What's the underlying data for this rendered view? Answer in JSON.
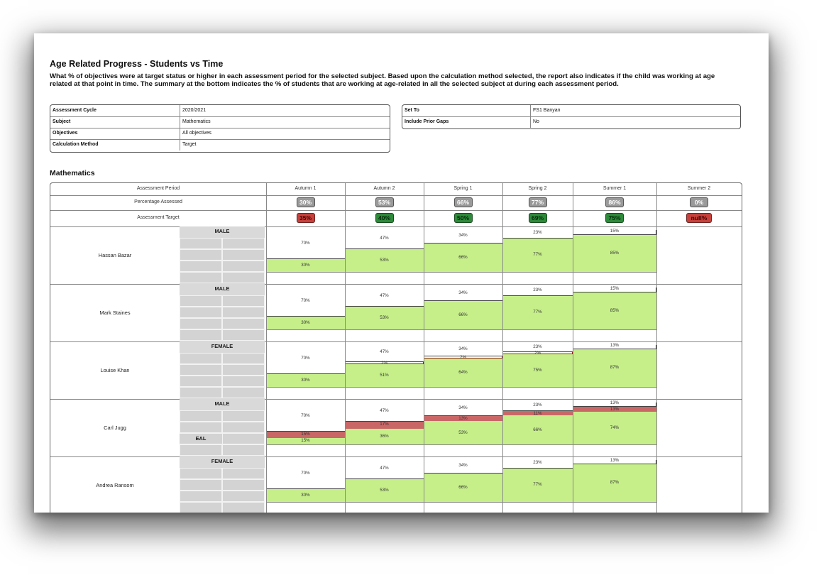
{
  "report": {
    "title": "Age Related Progress - Students vs Time",
    "description": "What % of objectives were at target status or higher in each assessment period for the selected subject. Based upon the calculation method selected, the report also indicates if the child was working at age related at that point in time. The summary at the bottom indicates the % of students that are working at age-related in all the selected subject at during each assessment period."
  },
  "info_left": [
    {
      "label": "Assessment Cycle",
      "value": "2020/2021"
    },
    {
      "label": "Subject",
      "value": "Mathematics"
    },
    {
      "label": "Objectives",
      "value": "All objectives"
    },
    {
      "label": "Calculation Method",
      "value": "Target"
    }
  ],
  "info_right": [
    {
      "label": "Set To",
      "value": "FS1 Banyan"
    },
    {
      "label": "Include Prior Gaps",
      "value": "No"
    }
  ],
  "section_title": "Mathematics",
  "table": {
    "row_labels": [
      "Assessment Period",
      "Percentage Assessed",
      "Assessment Target"
    ],
    "periods": [
      "Autumn 1",
      "Autumn 2",
      "Spring 1",
      "Spring 2",
      "Summer 1",
      "Summer 2"
    ],
    "percentage_assessed": [
      "30%",
      "53%",
      "66%",
      "77%",
      "86%",
      "0%"
    ],
    "assessment_target": [
      {
        "text": "35%",
        "status": "red"
      },
      {
        "text": "40%",
        "status": "green"
      },
      {
        "text": "50%",
        "status": "green"
      },
      {
        "text": "69%",
        "status": "green"
      },
      {
        "text": "75%",
        "status": "green"
      },
      {
        "text": "null%",
        "status": "red"
      }
    ]
  },
  "students": [
    {
      "name": "Hassan Bazar",
      "gender": "MALE",
      "tag": "",
      "periods": [
        {
          "top": "70%",
          "green": "30%",
          "green_value": 30,
          "white": 0,
          "white_label": ""
        },
        {
          "top": "47%",
          "green": "53%",
          "green_value": 53,
          "white": 0,
          "white_label": ""
        },
        {
          "top": "34%",
          "green": "66%",
          "green_value": 66,
          "white": 0,
          "white_label": ""
        },
        {
          "top": "23%",
          "green": "77%",
          "green_value": 77,
          "white": 0,
          "white_label": ""
        },
        {
          "top": "15%",
          "green": "85%",
          "green_value": 85,
          "white": 0,
          "white_label": ""
        }
      ]
    },
    {
      "name": "Mark Staines",
      "gender": "MALE",
      "tag": "",
      "periods": [
        {
          "top": "70%",
          "green": "30%",
          "green_value": 30,
          "white": 0,
          "white_label": ""
        },
        {
          "top": "47%",
          "green": "53%",
          "green_value": 53,
          "white": 0,
          "white_label": ""
        },
        {
          "top": "34%",
          "green": "66%",
          "green_value": 66,
          "white": 0,
          "white_label": ""
        },
        {
          "top": "23%",
          "green": "77%",
          "green_value": 77,
          "white": 0,
          "white_label": ""
        },
        {
          "top": "15%",
          "green": "85%",
          "green_value": 85,
          "white": 0,
          "white_label": ""
        }
      ]
    },
    {
      "name": "Louise Khan",
      "gender": "FEMALE",
      "tag": "",
      "periods": [
        {
          "top": "70%",
          "green": "30%",
          "green_value": 30,
          "white": 0,
          "white_label": ""
        },
        {
          "top": "47%",
          "green": "51%",
          "green_value": 51,
          "white": 2,
          "white_label": "2%"
        },
        {
          "top": "34%",
          "green": "64%",
          "green_value": 64,
          "white": 2,
          "white_label": "2%"
        },
        {
          "top": "23%",
          "green": "75%",
          "green_value": 75,
          "white": 2,
          "white_label": "2%"
        },
        {
          "top": "13%",
          "green": "87%",
          "green_value": 87,
          "white": 0,
          "white_label": ""
        }
      ]
    },
    {
      "name": "Carl Jugg",
      "gender": "MALE",
      "tag": "EAL",
      "periods": [
        {
          "top": "70%",
          "green": "15%",
          "green_value": 15,
          "white": 0,
          "white_label": "",
          "pink": 15,
          "pink_label": "15%"
        },
        {
          "top": "47%",
          "green": "36%",
          "green_value": 36,
          "white": 0,
          "white_label": "",
          "pink": 17,
          "pink_label": "17%"
        },
        {
          "top": "34%",
          "green": "53%",
          "green_value": 53,
          "white": 0,
          "white_label": "",
          "pink": 13,
          "pink_label": "13%"
        },
        {
          "top": "23%",
          "green": "66%",
          "green_value": 66,
          "white": 0,
          "white_label": "",
          "pink": 11,
          "pink_label": "11%"
        },
        {
          "top": "13%",
          "green": "74%",
          "green_value": 74,
          "white": 0,
          "white_label": "",
          "pink": 13,
          "pink_label": "13%"
        }
      ]
    },
    {
      "name": "Andrea Ransom",
      "gender": "FEMALE",
      "tag": "",
      "periods": [
        {
          "top": "70%",
          "green": "30%",
          "green_value": 30,
          "white": 0,
          "white_label": ""
        },
        {
          "top": "47%",
          "green": "53%",
          "green_value": 53,
          "white": 0,
          "white_label": ""
        },
        {
          "top": "34%",
          "green": "66%",
          "green_value": 66,
          "white": 0,
          "white_label": ""
        },
        {
          "top": "23%",
          "green": "77%",
          "green_value": 77,
          "white": 0,
          "white_label": ""
        },
        {
          "top": "13%",
          "green": "87%",
          "green_value": 87,
          "white": 0,
          "white_label": ""
        }
      ]
    }
  ]
}
